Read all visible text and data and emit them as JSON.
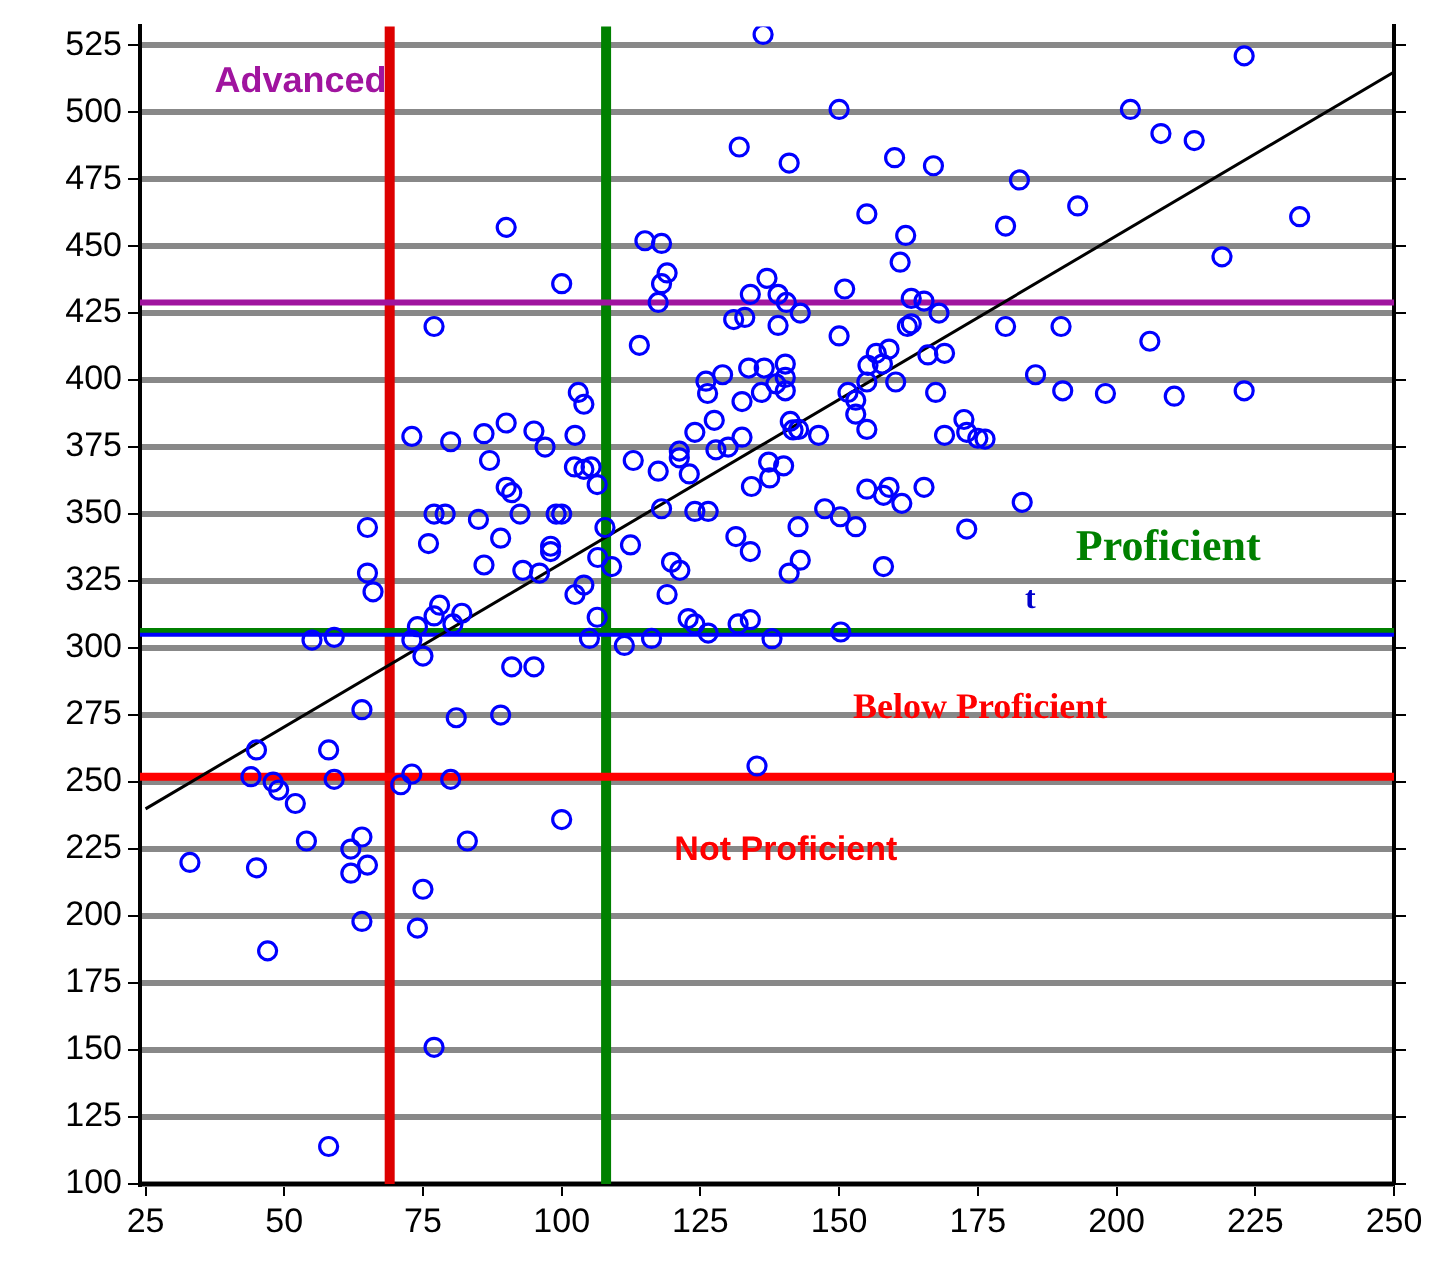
{
  "chart_data": {
    "type": "scatter",
    "grid": "y",
    "legend": false,
    "xlim": [
      24,
      250
    ],
    "xticks": [
      25,
      50,
      75,
      100,
      125,
      150,
      175,
      200,
      225,
      250
    ],
    "ylim": [
      100,
      532
    ],
    "yticks": [
      100,
      125,
      150,
      175,
      200,
      225,
      250,
      275,
      300,
      325,
      350,
      375,
      400,
      425,
      450,
      475,
      500,
      525
    ],
    "series": [
      {
        "marker": "circle",
        "color": "#0000ff",
        "x": [
          90,
          100,
          77,
          73,
          80,
          86,
          90,
          95,
          97,
          87,
          90,
          91,
          77,
          79,
          85,
          92.5,
          99,
          65,
          89,
          76,
          98,
          98,
          86,
          93,
          96,
          65,
          66,
          78,
          77,
          82,
          74,
          80.4,
          55,
          59,
          73,
          75,
          91,
          95,
          64,
          81,
          89,
          45,
          58,
          44,
          48,
          49,
          59,
          73,
          71,
          80,
          52,
          54,
          64,
          62,
          65,
          62,
          83,
          33,
          45,
          75,
          64,
          74,
          47,
          77,
          58,
          136.3,
          150,
          132,
          141,
          160,
          167,
          155,
          162,
          161,
          115,
          118,
          119,
          118,
          117.4,
          137,
          134,
          139,
          140.5,
          151,
          163,
          165.3,
          131,
          133,
          139,
          143,
          168,
          150,
          162.3,
          163,
          114,
          133.7,
          136.5,
          140.3,
          140.3,
          140.3,
          138.6,
          136,
          129,
          126,
          126.3,
          132.5,
          151.6,
          153,
          153,
          155,
          155.2,
          156.7,
          157.8,
          159,
          160.2,
          166,
          169,
          167.4,
          103,
          104,
          102.4,
          124,
          127.5,
          132.5,
          141.2,
          141.7,
          142.7,
          146.3,
          155,
          169,
          172.5,
          173,
          175,
          176.3,
          112.9,
          117.4,
          121.2,
          121.2,
          123,
          127.8,
          130,
          137.3,
          140,
          137.5,
          134.2,
          102.3,
          104,
          105.3,
          106.4,
          118,
          124,
          126.4,
          100,
          147.4,
          150.2,
          153,
          155,
          158,
          159,
          161.3,
          165.3,
          173,
          142.6,
          131.4,
          134,
          143,
          141,
          158,
          112.4,
          107.8,
          106.5,
          109,
          102.4,
          104,
          119.8,
          121.3,
          119,
          106.4,
          122.8,
          124,
          131.8,
          134,
          150.3,
          105,
          111.3,
          116.2,
          126.4,
          137.9,
          135.2,
          223,
          202.5,
          208,
          214,
          182.5,
          193,
          180,
          233,
          219,
          180,
          190,
          206,
          185.4,
          190.3,
          198,
          210.4,
          223,
          183,
          100
        ],
        "values": [
          457,
          436,
          420,
          379,
          377,
          380,
          384,
          381,
          375,
          370,
          360,
          358,
          350,
          350,
          348,
          350,
          350,
          345,
          341,
          339,
          338,
          336,
          331,
          329,
          328,
          328,
          321,
          316,
          312,
          313,
          308,
          309,
          303,
          304,
          303,
          297,
          293,
          293,
          277,
          274,
          275,
          262,
          262,
          252,
          250,
          247,
          251,
          253,
          249,
          251,
          242,
          228,
          229.5,
          225,
          219,
          216,
          228,
          220,
          218,
          210,
          198,
          195.5,
          187,
          151,
          114,
          529,
          501,
          487,
          481,
          483,
          480,
          462,
          454,
          444,
          452,
          451,
          440,
          436,
          429,
          438,
          432,
          432,
          429,
          434,
          430.5,
          429.5,
          422.6,
          423.4,
          420.4,
          425,
          425,
          416.5,
          420,
          421,
          413,
          404.5,
          404.5,
          406,
          401,
          396,
          398.6,
          395.4,
          402,
          399.6,
          395,
          392,
          395.4,
          392.5,
          387.3,
          399.3,
          405.5,
          410,
          406,
          411.6,
          399.3,
          409.4,
          410,
          395.4,
          395.4,
          391,
          379.4,
          380.5,
          385,
          378.7,
          384.6,
          381.4,
          381.6,
          379.4,
          381.6,
          379.4,
          385.3,
          380.5,
          378.3,
          378,
          370,
          366,
          373.5,
          371,
          365,
          374,
          375,
          369.4,
          368,
          363.5,
          360.3,
          367.6,
          366.7,
          367.6,
          361,
          352,
          351,
          351,
          350,
          352,
          349,
          345.3,
          359.3,
          357,
          360,
          354,
          360,
          344.4,
          345.3,
          341.6,
          336,
          332.8,
          328,
          330.4,
          338.5,
          345,
          333.8,
          330.4,
          320,
          323.5,
          332,
          329,
          320,
          311.5,
          311,
          309,
          309,
          310.6,
          306,
          303.6,
          301,
          303.6,
          305.6,
          303.5,
          256,
          521,
          501,
          492,
          489.4,
          474.7,
          465,
          457.5,
          461,
          446,
          420,
          420,
          414.5,
          402,
          396,
          395,
          394,
          396,
          354.4,
          236
        ]
      },
      {
        "type": "line",
        "color": "#000000",
        "x": [
          25,
          250
        ],
        "values": [
          240,
          515
        ]
      }
    ],
    "ref_lines": [
      {
        "axis": "x",
        "value": 69,
        "color": "#dd0000"
      },
      {
        "axis": "x",
        "value": 108,
        "color": "#008000"
      },
      {
        "axis": "y",
        "value": 429,
        "color": "#a0149f"
      },
      {
        "axis": "y",
        "value": 306,
        "color": "#008000"
      },
      {
        "axis": "y",
        "value": 305,
        "color": "#0000ff"
      },
      {
        "axis": "y",
        "value": 252,
        "color": "#ff0000"
      }
    ],
    "annotations": [
      "Advanced",
      "Proficient",
      "Below Proficient",
      "Not Proficient",
      "t"
    ]
  }
}
